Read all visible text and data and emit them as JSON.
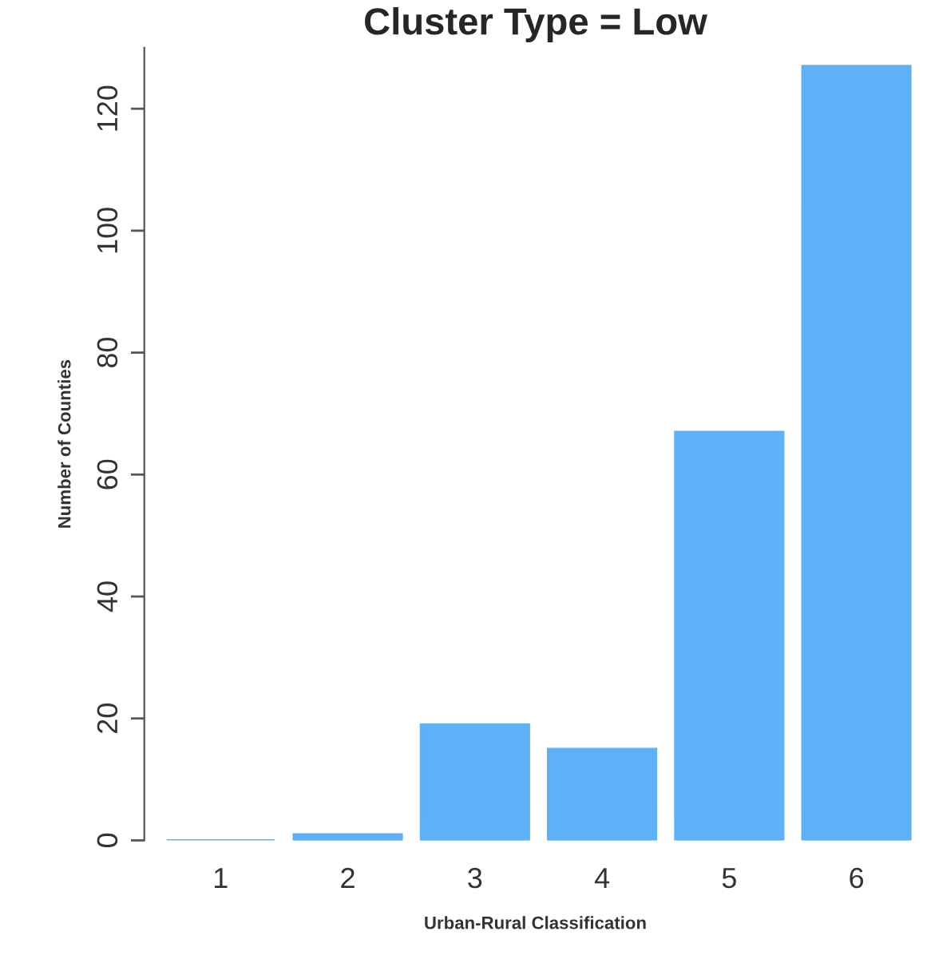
{
  "chart_data": {
    "type": "bar",
    "title": "Cluster Type = Low",
    "xlabel": "Urban-Rural Classification",
    "ylabel": "Number of Counties",
    "categories": [
      "1",
      "2",
      "3",
      "4",
      "5",
      "6"
    ],
    "values": [
      0,
      1,
      19,
      15,
      67,
      127
    ],
    "color": "#5eb1f7",
    "ylim": [
      0,
      130
    ],
    "yticks": [
      0,
      20,
      40,
      60,
      80,
      100,
      120
    ],
    "grid": false
  }
}
